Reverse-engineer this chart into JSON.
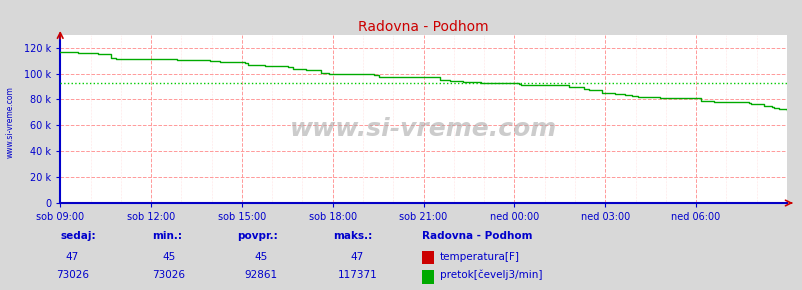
{
  "title": "Radovna - Podhom",
  "bg_color": "#d8d8d8",
  "plot_bg_color": "#ffffff",
  "x_labels": [
    "sob 09:00",
    "sob 12:00",
    "sob 15:00",
    "sob 18:00",
    "sob 21:00",
    "ned 00:00",
    "ned 03:00",
    "ned 06:00"
  ],
  "x_ticks_pos": [
    0.0,
    0.125,
    0.25,
    0.375,
    0.5,
    0.625,
    0.75,
    0.875
  ],
  "ylim": [
    0,
    130000
  ],
  "yticks": [
    0,
    20000,
    40000,
    60000,
    80000,
    100000,
    120000
  ],
  "ytick_labels": [
    "0",
    "20 k",
    "40 k",
    "60 k",
    "80 k",
    "100 k",
    "120 k"
  ],
  "flow_color": "#00aa00",
  "temp_color": "#cc0000",
  "avg_line_color": "#00cc00",
  "avg_value": 92861,
  "watermark": "www.si-vreme.com",
  "sedaj_label": "sedaj:",
  "min_label": "min.:",
  "povpr_label": "povpr.:",
  "maks_label": "maks.:",
  "station_label": "Radovna - Podhom",
  "temp_sedaj": 47,
  "temp_min": 45,
  "temp_povpr": 45,
  "temp_maks": 47,
  "flow_sedaj": 73026,
  "flow_min": 73026,
  "flow_povpr": 92861,
  "flow_maks": 117371,
  "temp_legend": "temperatura[F]",
  "flow_legend": "pretok[čevelj3/min]",
  "label_color": "#0000cc",
  "grid_color_major": "#ff9999",
  "grid_color_minor": "#ffcccc",
  "axis_color": "#0000cc",
  "n_points": 288
}
